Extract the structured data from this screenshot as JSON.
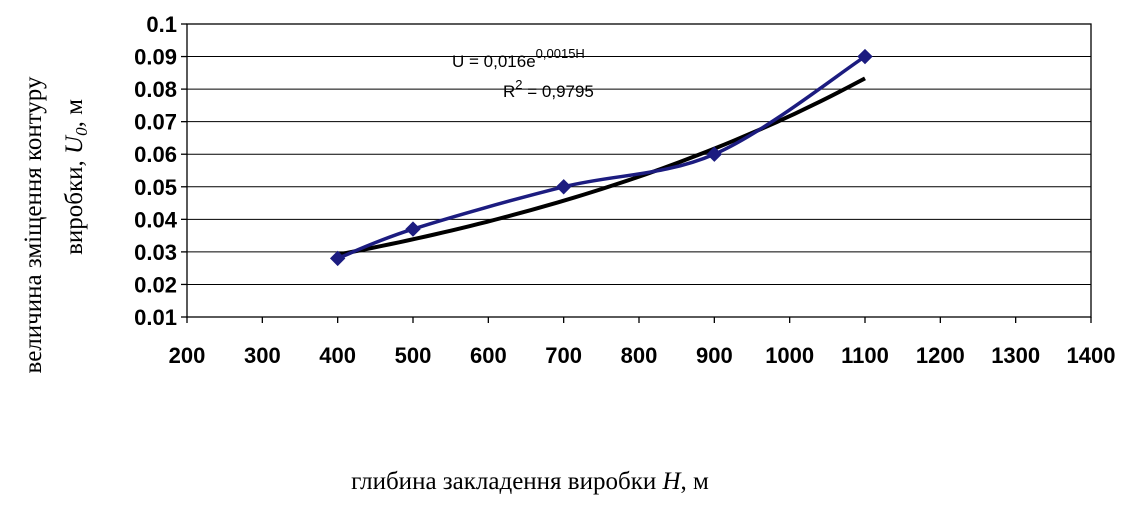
{
  "chart_data": {
    "type": "scatter",
    "x_axis": {
      "label_text": "глибина закладення виробки ",
      "label_var": "H",
      "label_unit": ", м",
      "min": 200,
      "max": 1400,
      "ticks": [
        "200",
        "300",
        "400",
        "500",
        "600",
        "700",
        "800",
        "900",
        "1000",
        "1100",
        "1200",
        "1300",
        "1400"
      ]
    },
    "y_axis": {
      "label_line1": "величина зміщення контуру",
      "label_line2_text": "виробки, ",
      "label_line2_var": "U",
      "label_line2_sub": "0",
      "label_line2_unit": ", м",
      "min": 0.01,
      "max": 0.1,
      "ticks": [
        "0.01",
        "0.02",
        "0.03",
        "0.04",
        "0.05",
        "0.06",
        "0.07",
        "0.08",
        "0.09",
        "0.1"
      ]
    },
    "grid": "horizontal",
    "series": [
      {
        "marker": "diamond",
        "line": "smoothed",
        "color": "#1c1c80",
        "x": [
          400,
          500,
          700,
          900,
          1100
        ],
        "y": [
          0.028,
          0.037,
          0.05,
          0.06,
          0.09
        ]
      }
    ],
    "trendline": {
      "type": "exponential",
      "color": "#000000",
      "a": 0.016,
      "b": 0.0015,
      "x_range": [
        400,
        1100
      ],
      "equation_prefix": "U = 0,016e",
      "equation_exponent": "0,0015H",
      "r2_prefix": "R",
      "r2_exponent": "2",
      "r2_value": " = 0,9795"
    }
  }
}
